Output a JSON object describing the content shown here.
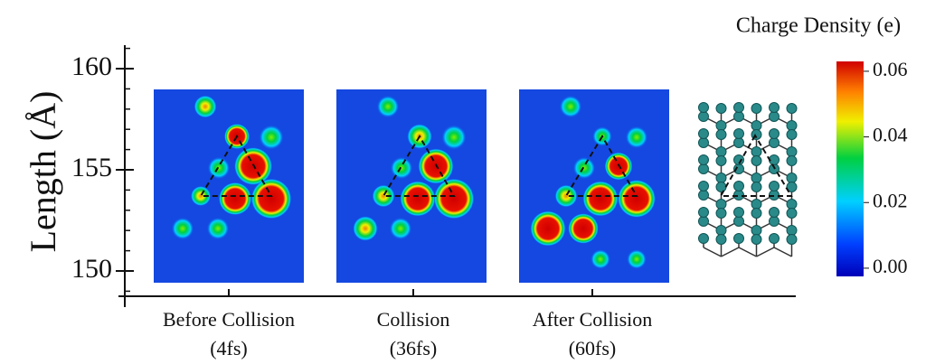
{
  "chart_data": {
    "type": "heatmap-panels",
    "ylabel": "Length (Å)",
    "colorbar_title": "Charge Density (e)",
    "categories": [
      "Before Collision",
      "Collision",
      "After Collision"
    ],
    "category_times": [
      "(4fs)",
      "(36fs)",
      "(60fs)"
    ],
    "ylim": [
      148.75,
      161.16
    ],
    "yticks": [
      150,
      155,
      160
    ],
    "yminorticks": [
      149,
      151,
      152,
      153,
      154,
      156,
      157,
      158,
      159,
      161
    ],
    "clim": [
      -0.0025,
      0.063
    ],
    "cticks": [
      {
        "value": 0,
        "label": "0.00"
      },
      0.02,
      0.04,
      0.06
    ]
  }
}
